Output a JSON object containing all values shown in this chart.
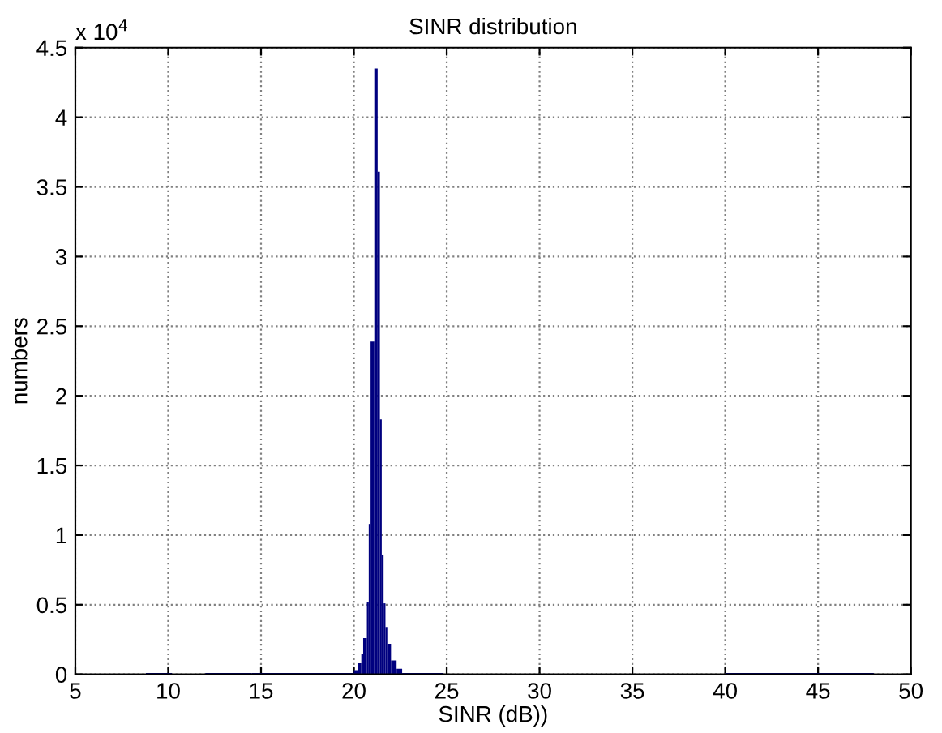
{
  "chart_data": {
    "type": "histogram",
    "title": "SINR distribution",
    "xlabel": "SINR (dB))",
    "ylabel": "numbers",
    "annotations": [
      "x 10$^{4}$"
    ],
    "bins": [
      8.8,
      10.2,
      12.0,
      14.5,
      20.0,
      20.2,
      20.4,
      20.5,
      20.7,
      20.8,
      20.9,
      21.1,
      21.28,
      21.4,
      21.5,
      21.6,
      21.7,
      21.8,
      22.0,
      22.3,
      22.6,
      24.8,
      40.0,
      48.0
    ],
    "values": [
      0.01,
      0,
      0.01,
      0.01,
      0.03,
      0.08,
      0.15,
      0.26,
      0.52,
      1.08,
      2.39,
      4.35,
      3.61,
      1.83,
      0.86,
      0.51,
      0.34,
      0.22,
      0.1,
      0.04,
      0.01,
      0,
      0.01
    ],
    "color": "#00007f",
    "xlim": [
      5,
      50
    ],
    "xticks": [
      5,
      10,
      15,
      20,
      25,
      30,
      35,
      40,
      45,
      50
    ],
    "ylim": [
      0,
      4.5
    ],
    "yticks": [
      0,
      0.5,
      1,
      1.5,
      2,
      2.5,
      3,
      3.5,
      4,
      4.5
    ],
    "grid": true
  }
}
